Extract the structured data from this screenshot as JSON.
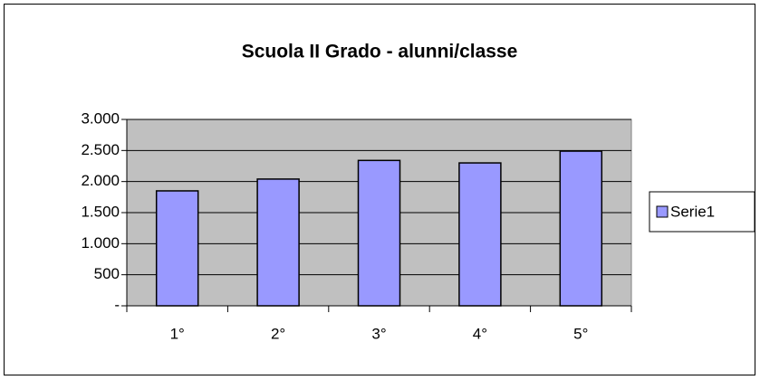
{
  "chart_data": {
    "type": "bar",
    "title": "Scuola II Grado - alunni/classe",
    "categories": [
      "1°",
      "2°",
      "3°",
      "4°",
      "5°"
    ],
    "series": [
      {
        "name": "Serie1",
        "color": "#9999ff",
        "values": [
          1850,
          2040,
          2340,
          2300,
          2490
        ]
      }
    ],
    "ylim": [
      0,
      3000
    ],
    "yticks": [
      {
        "value": 0,
        "label": "-"
      },
      500,
      {
        "value": 1000,
        "label": "1.000"
      },
      {
        "value": 1500,
        "label": "1.500"
      },
      {
        "value": 2000,
        "label": "2.000"
      },
      {
        "value": 2500,
        "label": "2.500"
      },
      {
        "value": 3000,
        "label": "3.000"
      }
    ],
    "grid": true,
    "legend": "right",
    "plot_background": "#c0c0c0"
  }
}
